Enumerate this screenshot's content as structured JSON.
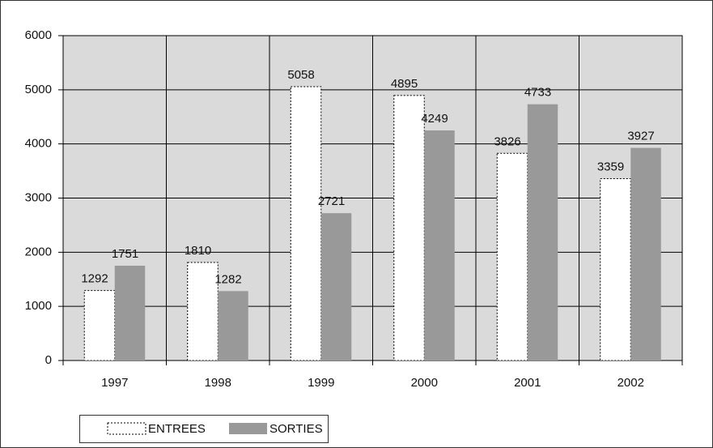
{
  "chart_data": {
    "type": "bar",
    "categories": [
      "1997",
      "1998",
      "1999",
      "2000",
      "2001",
      "2002"
    ],
    "series": [
      {
        "name": "ENTREES",
        "color": "#ffffff",
        "values": [
          1292,
          1810,
          5058,
          4895,
          3826,
          3359
        ]
      },
      {
        "name": "SORTIES",
        "color": "#999999",
        "values": [
          1751,
          1282,
          2721,
          4249,
          4733,
          3927
        ]
      }
    ],
    "ylim": [
      0,
      6000
    ],
    "yticks": [
      0,
      1000,
      2000,
      3000,
      4000,
      5000,
      6000
    ],
    "grid": true,
    "plot_background": "#dadada"
  }
}
